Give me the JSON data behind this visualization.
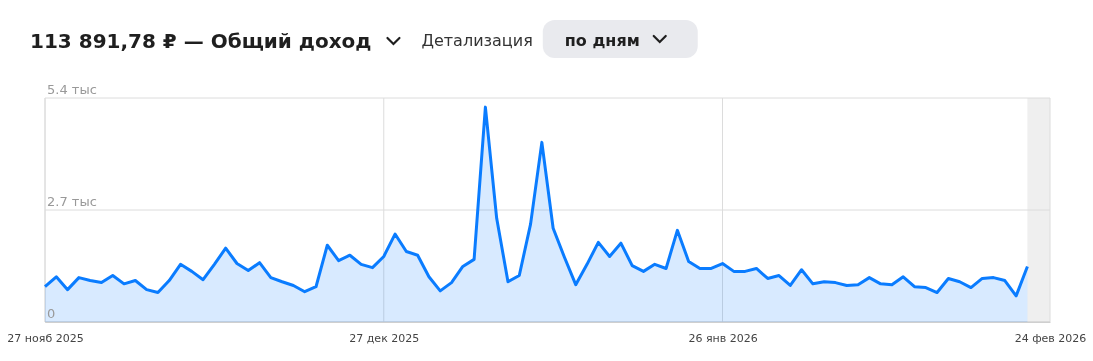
{
  "chart_data": {
    "type": "area",
    "title": "113 891,78 ₽ — Общий доход",
    "annotations": [
      "Детализация",
      "по дням"
    ],
    "x": [
      "2025-11-27",
      "2025-11-28",
      "2025-11-29",
      "2025-11-30",
      "2025-12-01",
      "2025-12-02",
      "2025-12-03",
      "2025-12-04",
      "2025-12-05",
      "2025-12-06",
      "2025-12-07",
      "2025-12-08",
      "2025-12-09",
      "2025-12-10",
      "2025-12-11",
      "2025-12-12",
      "2025-12-13",
      "2025-12-14",
      "2025-12-15",
      "2025-12-16",
      "2025-12-17",
      "2025-12-18",
      "2025-12-19",
      "2025-12-20",
      "2025-12-21",
      "2025-12-22",
      "2025-12-23",
      "2025-12-24",
      "2025-12-25",
      "2025-12-26",
      "2025-12-27",
      "2025-12-28",
      "2025-12-29",
      "2025-12-30",
      "2025-12-31",
      "2026-01-01",
      "2026-01-02",
      "2026-01-03",
      "2026-01-04",
      "2026-01-05",
      "2026-01-06",
      "2026-01-07",
      "2026-01-08",
      "2026-01-09",
      "2026-01-10",
      "2026-01-11",
      "2026-01-12",
      "2026-01-13",
      "2026-01-14",
      "2026-01-15",
      "2026-01-16",
      "2026-01-17",
      "2026-01-18",
      "2026-01-19",
      "2026-01-20",
      "2026-01-21",
      "2026-01-22",
      "2026-01-23",
      "2026-01-24",
      "2026-01-25",
      "2026-01-26",
      "2026-01-27",
      "2026-01-28",
      "2026-01-29",
      "2026-01-30",
      "2026-01-31",
      "2026-02-01",
      "2026-02-02",
      "2026-02-03",
      "2026-02-04",
      "2026-02-05",
      "2026-02-06",
      "2026-02-07",
      "2026-02-08",
      "2026-02-09",
      "2026-02-10",
      "2026-02-11",
      "2026-02-12",
      "2026-02-13",
      "2026-02-14",
      "2026-02-15",
      "2026-02-16",
      "2026-02-17",
      "2026-02-18",
      "2026-02-19",
      "2026-02-20",
      "2026-02-21",
      "2026-02-22"
    ],
    "series": [
      {
        "color": "#0a7cff",
        "values": [
          0.85,
          1.09,
          0.78,
          1.07,
          1.0,
          0.95,
          1.12,
          0.92,
          1.0,
          0.78,
          0.71,
          1.0,
          1.39,
          1.22,
          1.02,
          1.39,
          1.78,
          1.41,
          1.24,
          1.43,
          1.07,
          0.97,
          0.88,
          0.73,
          0.85,
          1.85,
          1.48,
          1.61,
          1.39,
          1.31,
          1.58,
          2.12,
          1.7,
          1.61,
          1.09,
          0.75,
          0.95,
          1.34,
          1.51,
          5.18,
          2.5,
          0.97,
          1.12,
          2.36,
          4.33,
          2.26,
          1.56,
          0.9,
          1.39,
          1.92,
          1.58,
          1.9,
          1.36,
          1.22,
          1.39,
          1.29,
          2.21,
          1.46,
          1.29,
          1.29,
          1.41,
          1.22,
          1.22,
          1.29,
          1.05,
          1.12,
          0.88,
          1.26,
          0.92,
          0.97,
          0.95,
          0.88,
          0.9,
          1.07,
          0.92,
          0.9,
          1.09,
          0.85,
          0.83,
          0.71,
          1.05,
          0.97,
          0.83,
          1.05,
          1.07,
          1.0,
          0.63,
          1.34
        ]
      }
    ],
    "xlim": [
      "2025-11-27",
      "2026-02-24"
    ],
    "xticks": [
      {
        "value": "2025-11-27",
        "label": "27 нояб 2025"
      },
      {
        "value": "2025-12-27",
        "label": "27 дек 2025"
      },
      {
        "value": "2026-01-26",
        "label": "26 янв 2026"
      },
      {
        "value": "2026-02-24",
        "label": "24 фев 2026"
      }
    ],
    "ylim": [
      0,
      5.4
    ],
    "yticks": [
      {
        "value": 0,
        "label": "0"
      },
      {
        "value": 2.7,
        "label": "2.7 тыс"
      },
      {
        "value": 5.4,
        "label": "5.4 тыс"
      }
    ],
    "bands": [
      {
        "axis": "x",
        "from": "2026-02-22",
        "to": "2026-02-24",
        "color": "#efefef"
      }
    ],
    "grid": true,
    "marker": "none",
    "line_style": "solid"
  }
}
